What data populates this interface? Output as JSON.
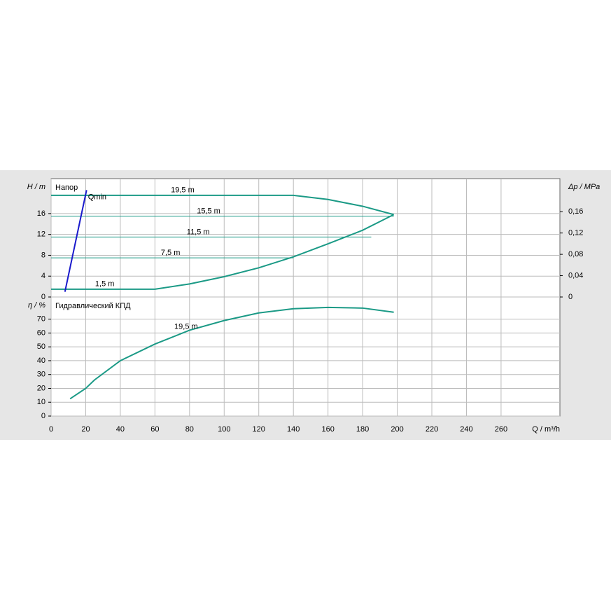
{
  "chart_data": [
    {
      "type": "line",
      "title": "Напор",
      "y_label": "H / m",
      "y2_label": "Δp / MPa",
      "ylim": [
        0,
        22.7
      ],
      "yticks": [
        0,
        4,
        8,
        12,
        16
      ],
      "y2lim": [
        0,
        0.222
      ],
      "y2ticks": [
        {
          "value": 0,
          "label": "0"
        },
        {
          "value": 0.04,
          "label": "0,04"
        },
        {
          "value": 0.08,
          "label": "0,08"
        },
        {
          "value": 0.12,
          "label": "0,12"
        },
        {
          "value": 0.16,
          "label": "0,16"
        }
      ],
      "grid": true,
      "series": [
        {
          "name": "19,5 m",
          "color": "#1b9a86",
          "width": 2,
          "x": [
            0,
            140,
            160,
            180,
            198
          ],
          "values": [
            19.5,
            19.5,
            18.7,
            17.4,
            15.8
          ]
        },
        {
          "name": "15,5 m",
          "color": "#1b9a86",
          "width": 1,
          "x": [
            0,
            198
          ],
          "values": [
            15.5,
            15.5
          ]
        },
        {
          "name": "11,5 m",
          "color": "#1b9a86",
          "width": 1,
          "x": [
            0,
            185
          ],
          "values": [
            11.5,
            11.5
          ]
        },
        {
          "name": "7,5 m",
          "color": "#1b9a86",
          "width": 1,
          "x": [
            0,
            140
          ],
          "values": [
            7.5,
            7.5
          ]
        },
        {
          "name": "1,5 m",
          "color": "#1b9a86",
          "width": 2,
          "x": [
            0,
            60,
            80,
            100,
            120,
            140,
            160,
            180,
            198
          ],
          "values": [
            1.5,
            1.5,
            2.5,
            3.9,
            5.6,
            7.7,
            10.2,
            12.8,
            15.8
          ]
        },
        {
          "name": "Qmin",
          "color": "#1a1acc",
          "width": 2,
          "x": [
            8,
            20.5
          ],
          "values": [
            1.0,
            20.5
          ]
        }
      ]
    },
    {
      "type": "line",
      "title": "Гидравлический КПД",
      "y_label": "η / %",
      "x_label": "Q / m³/h",
      "xlim": [
        0,
        294
      ],
      "xticks": [
        0,
        20,
        40,
        60,
        80,
        100,
        120,
        140,
        160,
        180,
        200,
        220,
        240,
        260
      ],
      "ylim": [
        0,
        86
      ],
      "yticks": [
        0,
        10,
        20,
        30,
        40,
        50,
        60,
        70
      ],
      "grid": true,
      "series": [
        {
          "name": "19,5 m",
          "color": "#1b9a86",
          "width": 2,
          "x": [
            11,
            20,
            25,
            40,
            60,
            80,
            100,
            120,
            140,
            160,
            180,
            198
          ],
          "values": [
            12.5,
            20,
            26,
            40,
            52,
            62,
            69,
            74.5,
            77.5,
            78.5,
            78,
            75
          ]
        }
      ]
    }
  ]
}
